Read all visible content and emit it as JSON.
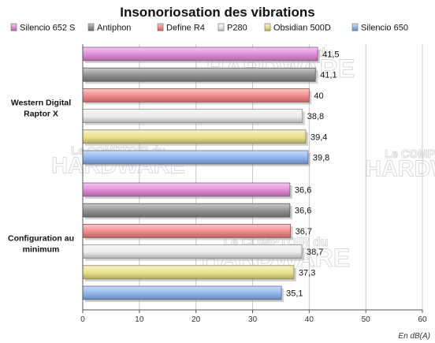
{
  "chart_data": {
    "type": "bar",
    "orientation": "horizontal",
    "title": "Insonoriosation des vibrations",
    "xlabel": "En dB(A)",
    "xlim": [
      0,
      60
    ],
    "xticks": [
      "0",
      "10",
      "20",
      "30",
      "40",
      "50",
      "60"
    ],
    "grid": true,
    "legend_position": "top",
    "categories": [
      "Western Digital Raptor X",
      "Configuration au minimum"
    ],
    "category_label_lines": [
      [
        "Western Digital",
        "Raptor X"
      ],
      [
        "Configuration au",
        "minimum"
      ]
    ],
    "series": [
      {
        "name": "Silencio 652 S",
        "color": "#e08ad8",
        "values": [
          41.5,
          36.6
        ],
        "labels": [
          "41,5",
          "36,6"
        ]
      },
      {
        "name": "Antiphon",
        "color": "#8e8e8e",
        "values": [
          41.1,
          36.6
        ],
        "labels": [
          "41,1",
          "36,6"
        ]
      },
      {
        "name": "Define R4",
        "color": "#f08a8a",
        "values": [
          40,
          36.7
        ],
        "labels": [
          "40",
          "36,7"
        ]
      },
      {
        "name": "P280",
        "color": "#ebebeb",
        "values": [
          38.8,
          38.7
        ],
        "labels": [
          "38,8",
          "38,7"
        ]
      },
      {
        "name": "Obsidian 500D",
        "color": "#e8e08a",
        "values": [
          39.4,
          37.3
        ],
        "labels": [
          "39,4",
          "37,3"
        ]
      },
      {
        "name": "Silencio 650",
        "color": "#8fb4ee",
        "values": [
          39.8,
          35.1
        ],
        "labels": [
          "39,8",
          "35,1"
        ]
      }
    ]
  },
  "watermark": {
    "line1": "Le COMPTOIR du",
    "line2": "HARDWARE"
  }
}
